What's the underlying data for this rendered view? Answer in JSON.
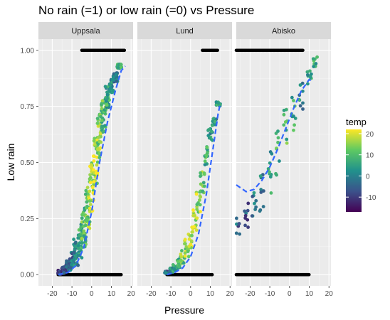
{
  "chart_data": {
    "type": "scatter",
    "title": "No rain (=1) or low rain (=0) vs Pressure",
    "xlabel": "Pressure",
    "ylabel": "Low rain",
    "xlim": [
      -27,
      21
    ],
    "ylim": [
      -0.05,
      1.05
    ],
    "x_ticks": [
      -20,
      -10,
      0,
      10,
      20
    ],
    "x_tick_labels": [
      "-20",
      "-10",
      "0",
      "10",
      "20"
    ],
    "y_ticks": [
      0,
      0.25,
      0.5,
      0.75,
      1.0
    ],
    "y_tick_labels": [
      "0.00",
      "0.25",
      "0.50",
      "0.75",
      "1.00"
    ],
    "grid": true,
    "legend": {
      "title": "temp",
      "position": "right",
      "color_range": [
        -17,
        22
      ],
      "ticks": [
        20,
        10,
        0,
        -10
      ],
      "tick_labels": [
        "20",
        "10",
        "0",
        "-10"
      ],
      "colors": [
        "#440154",
        "#3b528b",
        "#21918c",
        "#5ec962",
        "#fde725"
      ]
    },
    "fit_line_color": "#3366ff",
    "panels": [
      {
        "name": "Uppsala",
        "binary_points": {
          "y1_x_range": [
            -5,
            17
          ],
          "y0_x_range": [
            -17,
            15
          ]
        },
        "clouds": [
          {
            "x": [
              -16,
              -14,
              -12,
              -10,
              -8,
              -6,
              -4,
              -2,
              0,
              2,
              4,
              6,
              8,
              10,
              12,
              14
            ],
            "y": [
              0.01,
              0.02,
              0.04,
              0.06,
              0.1,
              0.15,
              0.21,
              0.3,
              0.39,
              0.51,
              0.62,
              0.71,
              0.79,
              0.84,
              0.88,
              0.93
            ],
            "spread": [
              0.02,
              0.03,
              0.05,
              0.08,
              0.12,
              0.15,
              0.18,
              0.2,
              0.22,
              0.22,
              0.2,
              0.15,
              0.1,
              0.06,
              0.04,
              0.02
            ],
            "temp": [
              -12,
              -10,
              -6,
              -2,
              2,
              6,
              10,
              14,
              18,
              18,
              14,
              10,
              6,
              2,
              -2,
              6
            ],
            "count": 32
          }
        ],
        "fit_line": {
          "x": [
            -17,
            -12,
            -8,
            -4,
            0,
            4,
            8,
            12,
            15,
            17
          ],
          "y": [
            0.0,
            0.01,
            0.04,
            0.12,
            0.28,
            0.5,
            0.68,
            0.82,
            0.91,
            0.93
          ]
        }
      },
      {
        "name": "Lund",
        "binary_points": {
          "y1_x_range": [
            6,
            14
          ],
          "y0_x_range": [
            -12,
            11
          ]
        },
        "clouds": [
          {
            "x": [
              -12,
              -10,
              -8,
              -6,
              -4,
              -2,
              0,
              2,
              4,
              6,
              8,
              10,
              12,
              14
            ],
            "y": [
              0.01,
              0.02,
              0.03,
              0.05,
              0.08,
              0.12,
              0.17,
              0.23,
              0.31,
              0.41,
              0.53,
              0.62,
              0.68,
              0.76
            ],
            "spread": [
              0.01,
              0.02,
              0.03,
              0.04,
              0.06,
              0.08,
              0.1,
              0.12,
              0.12,
              0.1,
              0.08,
              0.06,
              0.04,
              0.02
            ],
            "temp": [
              -4,
              0,
              4,
              8,
              12,
              16,
              18,
              18,
              16,
              12,
              8,
              4,
              2,
              6
            ],
            "count": 14
          }
        ],
        "fit_line": {
          "x": [
            -12,
            -8,
            -4,
            0,
            4,
            8,
            10,
            12,
            14,
            15
          ],
          "y": [
            0.0,
            0.01,
            0.03,
            0.08,
            0.18,
            0.36,
            0.48,
            0.6,
            0.72,
            0.76
          ]
        }
      },
      {
        "name": "Abisko",
        "binary_points": {
          "y1_x_range": [
            -27,
            7
          ],
          "y0_x_range": [
            -27,
            10
          ]
        },
        "clouds": [
          {
            "x": [
              -26,
              -22,
              -18,
              -14,
              -10,
              -6,
              -2,
              2,
              6,
              10,
              13
            ],
            "y": [
              0.2,
              0.25,
              0.3,
              0.35,
              0.45,
              0.55,
              0.65,
              0.72,
              0.8,
              0.9,
              0.95
            ],
            "spread": [
              0.12,
              0.15,
              0.18,
              0.2,
              0.22,
              0.22,
              0.2,
              0.18,
              0.14,
              0.1,
              0.05
            ],
            "temp": [
              -4,
              -6,
              -2,
              0,
              4,
              8,
              10,
              6,
              2,
              4,
              8
            ],
            "count": 9
          }
        ],
        "fit_line": {
          "x": [
            -27,
            -22,
            -18,
            -14,
            -10,
            -6,
            -2,
            2,
            6,
            10,
            12
          ],
          "y": [
            0.4,
            0.37,
            0.38,
            0.42,
            0.48,
            0.56,
            0.65,
            0.74,
            0.82,
            0.87,
            0.86
          ]
        }
      }
    ]
  }
}
